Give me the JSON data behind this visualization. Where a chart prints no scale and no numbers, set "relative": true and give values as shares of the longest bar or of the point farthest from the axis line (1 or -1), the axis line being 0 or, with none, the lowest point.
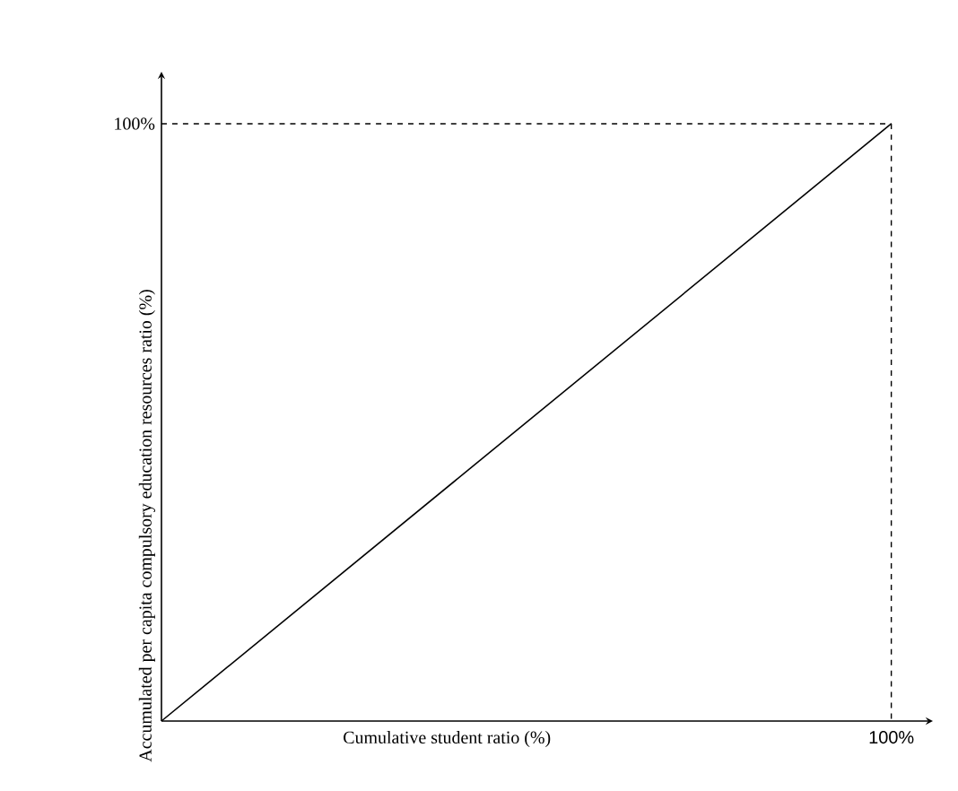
{
  "chart_data": {
    "type": "line",
    "relative": true,
    "xlabel": "Cumulative student ratio (%)",
    "ylabel": "Accumulated per capita compulsory education resources ratio (%)",
    "categories": [
      null,
      null
    ],
    "series": [
      {
        "color": "#000000",
        "values": [
          0,
          1
        ]
      }
    ],
    "annotations": [
      "100%",
      "100%"
    ],
    "ref_lines": [
      {
        "axis": "y",
        "value": 1,
        "line_style": "dashed",
        "color": "#000000"
      }
    ]
  }
}
